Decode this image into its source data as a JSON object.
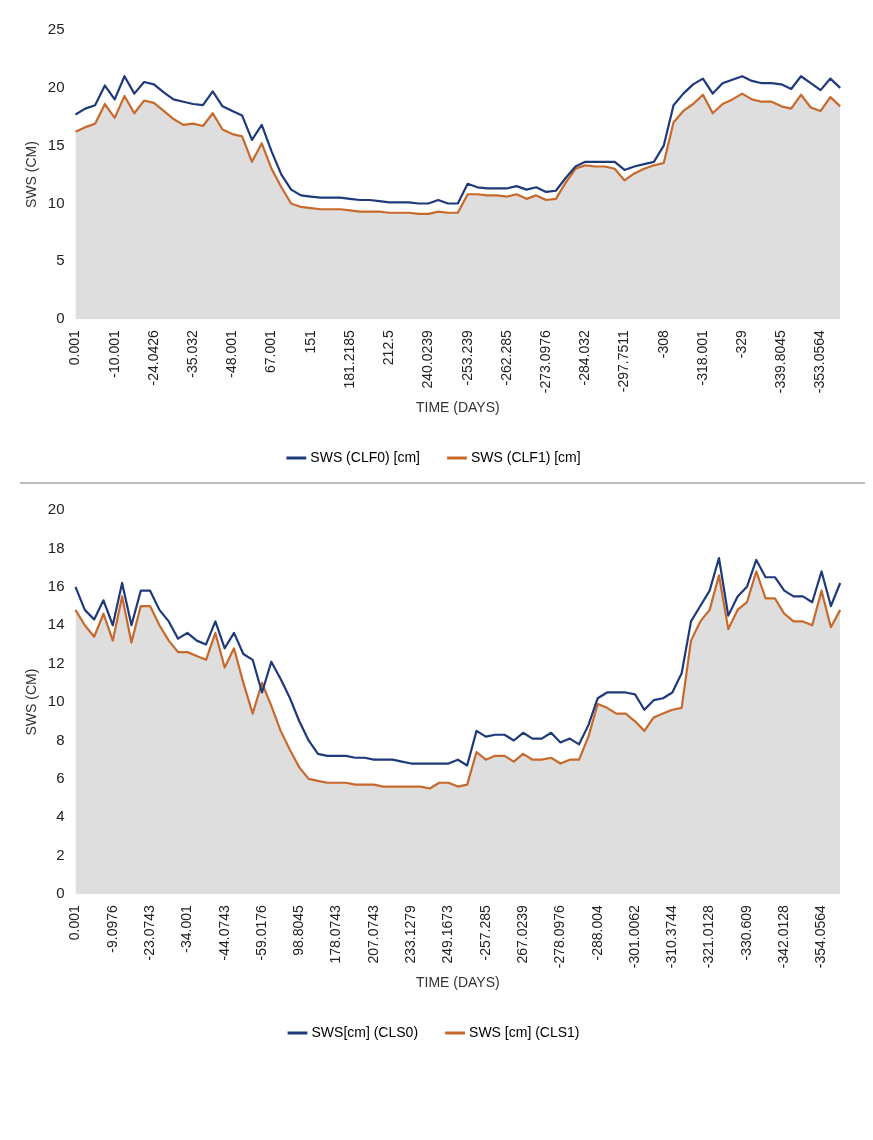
{
  "chart_data": [
    {
      "type": "line",
      "xlabel": "TIME (DAYS)",
      "ylabel": "SWS (CM)",
      "ylim": [
        0,
        25
      ],
      "yticks": [
        0,
        5,
        10,
        15,
        20,
        25
      ],
      "grid": false,
      "legend": "bottom",
      "marker": "none",
      "categories": [
        "0.001",
        null,
        null,
        null,
        "-10.001",
        null,
        null,
        null,
        "-24.0426",
        null,
        null,
        null,
        "-35.032",
        null,
        null,
        null,
        "-48.001",
        null,
        null,
        null,
        "67.001",
        null,
        null,
        null,
        "151",
        null,
        null,
        null,
        "181.2185",
        null,
        null,
        null,
        "212.5",
        null,
        null,
        null,
        "240.0239",
        null,
        null,
        null,
        "-253.239",
        null,
        null,
        null,
        "-262.285",
        null,
        null,
        null,
        "-273.0976",
        null,
        null,
        null,
        "-284.032",
        null,
        null,
        null,
        "-297.7511",
        null,
        null,
        null,
        "-308",
        null,
        null,
        null,
        "-318.001",
        null,
        null,
        null,
        "-329",
        null,
        null,
        null,
        "-339.8045",
        null,
        null,
        null,
        "-353.0564",
        null,
        null
      ],
      "series": [
        {
          "name": "SWS (CLF0) [cm]",
          "color": "#1f3a7a",
          "type": "line",
          "values": [
            17.7,
            18.2,
            18.5,
            20.2,
            19.0,
            21.0,
            19.5,
            20.5,
            20.3,
            19.6,
            19.0,
            18.8,
            18.6,
            18.5,
            19.7,
            18.4,
            18.0,
            17.6,
            15.5,
            16.8,
            14.5,
            12.5,
            11.2,
            10.7,
            10.6,
            10.5,
            10.5,
            10.5,
            10.4,
            10.3,
            10.3,
            10.2,
            10.1,
            10.1,
            10.1,
            10.0,
            10.0,
            10.3,
            10.0,
            10.0,
            11.7,
            11.4,
            11.3,
            11.3,
            11.3,
            11.5,
            11.2,
            11.4,
            11.0,
            11.1,
            12.2,
            13.2,
            13.6,
            13.6,
            13.6,
            13.6,
            12.9,
            13.2,
            13.4,
            13.6,
            15.0,
            18.5,
            19.5,
            20.3,
            20.8,
            19.5,
            20.4,
            20.7,
            21.0,
            20.6,
            20.4,
            20.4,
            20.3,
            19.9,
            21.0,
            20.4,
            19.8,
            20.8,
            20.0
          ]
        },
        {
          "name": "SWS (CLF1) [cm]",
          "color": "#c8692c",
          "type": "area",
          "values": [
            16.2,
            16.6,
            16.9,
            18.6,
            17.4,
            19.3,
            17.8,
            18.9,
            18.7,
            18.0,
            17.3,
            16.8,
            16.9,
            16.7,
            17.8,
            16.4,
            16.0,
            15.8,
            13.6,
            15.2,
            13.0,
            11.4,
            10.0,
            9.7,
            9.6,
            9.5,
            9.5,
            9.5,
            9.4,
            9.3,
            9.3,
            9.3,
            9.2,
            9.2,
            9.2,
            9.1,
            9.1,
            9.3,
            9.2,
            9.2,
            10.8,
            10.8,
            10.7,
            10.7,
            10.6,
            10.8,
            10.4,
            10.7,
            10.3,
            10.4,
            11.8,
            13.0,
            13.3,
            13.2,
            13.2,
            13.0,
            12.0,
            12.6,
            13.0,
            13.3,
            13.5,
            17.0,
            18.0,
            18.6,
            19.4,
            17.8,
            18.6,
            19.0,
            19.5,
            19.0,
            18.8,
            18.8,
            18.4,
            18.2,
            19.4,
            18.3,
            18.0,
            19.2,
            18.4
          ]
        }
      ]
    },
    {
      "type": "line",
      "xlabel": "TIME (DAYS)",
      "ylabel": "SWS (CM)",
      "ylim": [
        0,
        20
      ],
      "yticks": [
        0,
        2,
        4,
        6,
        8,
        10,
        12,
        14,
        16,
        18,
        20
      ],
      "grid": false,
      "legend": "bottom",
      "marker": "none",
      "categories": [
        "0.001",
        null,
        null,
        null,
        "-9.0976",
        null,
        null,
        null,
        "-23.0743",
        null,
        null,
        null,
        "-34.001",
        null,
        null,
        null,
        "-44.0743",
        null,
        null,
        null,
        "-59.0176",
        null,
        null,
        null,
        "98.8045",
        null,
        null,
        null,
        "178.0743",
        null,
        null,
        null,
        "207.0743",
        null,
        null,
        null,
        "233.1279",
        null,
        null,
        null,
        "249.1673",
        null,
        null,
        null,
        "-257.285",
        null,
        null,
        null,
        "267.0239",
        null,
        null,
        null,
        "-278.0976",
        null,
        null,
        null,
        "-288.004",
        null,
        null,
        null,
        "-301.0062",
        null,
        null,
        null,
        "-310.3744",
        null,
        null,
        null,
        "-321.0128",
        null,
        null,
        null,
        "-330.609",
        null,
        null,
        null,
        "-342.0128",
        null,
        null,
        null,
        "-354.0564",
        null,
        null
      ],
      "series": [
        {
          "name": "SWS[cm] (CLS0)",
          "color": "#1f3a7a",
          "type": "line",
          "values": [
            16.0,
            14.8,
            14.3,
            15.3,
            14.0,
            16.2,
            14.0,
            15.8,
            15.8,
            14.8,
            14.2,
            13.3,
            13.6,
            13.2,
            13.0,
            14.2,
            12.8,
            13.6,
            12.5,
            12.2,
            10.5,
            12.1,
            11.2,
            10.2,
            9.0,
            8.0,
            7.3,
            7.2,
            7.2,
            7.2,
            7.1,
            7.1,
            7.0,
            7.0,
            7.0,
            6.9,
            6.8,
            6.8,
            6.8,
            6.8,
            6.8,
            7.0,
            6.7,
            8.5,
            8.2,
            8.3,
            8.3,
            8.0,
            8.4,
            8.1,
            8.1,
            8.4,
            7.9,
            8.1,
            7.8,
            8.8,
            10.2,
            10.5,
            10.5,
            10.5,
            10.4,
            9.6,
            10.1,
            10.2,
            10.5,
            11.5,
            14.2,
            15.0,
            15.8,
            17.5,
            14.5,
            15.5,
            16.0,
            17.4,
            16.5,
            16.5,
            15.8,
            15.5,
            15.5,
            15.2,
            16.8,
            15.0,
            16.2
          ]
        },
        {
          "name": "SWS [cm] (CLS1)",
          "color": "#c8692c",
          "type": "area",
          "values": [
            14.8,
            14.0,
            13.4,
            14.6,
            13.2,
            15.5,
            13.1,
            15.0,
            15.0,
            14.0,
            13.2,
            12.6,
            12.6,
            12.4,
            12.2,
            13.6,
            11.8,
            12.8,
            11.0,
            9.4,
            11.0,
            9.8,
            8.5,
            7.5,
            6.6,
            6.0,
            5.9,
            5.8,
            5.8,
            5.8,
            5.7,
            5.7,
            5.7,
            5.6,
            5.6,
            5.6,
            5.6,
            5.6,
            5.5,
            5.8,
            5.8,
            5.6,
            5.7,
            7.4,
            7.0,
            7.2,
            7.2,
            6.9,
            7.3,
            7.0,
            7.0,
            7.1,
            6.8,
            7.0,
            7.0,
            8.2,
            9.9,
            9.7,
            9.4,
            9.4,
            9.0,
            8.5,
            9.2,
            9.4,
            9.6,
            9.7,
            13.2,
            14.2,
            14.8,
            16.6,
            13.8,
            14.8,
            15.2,
            16.8,
            15.4,
            15.4,
            14.6,
            14.2,
            14.2,
            14.0,
            15.8,
            13.9,
            14.8
          ]
        }
      ]
    }
  ]
}
